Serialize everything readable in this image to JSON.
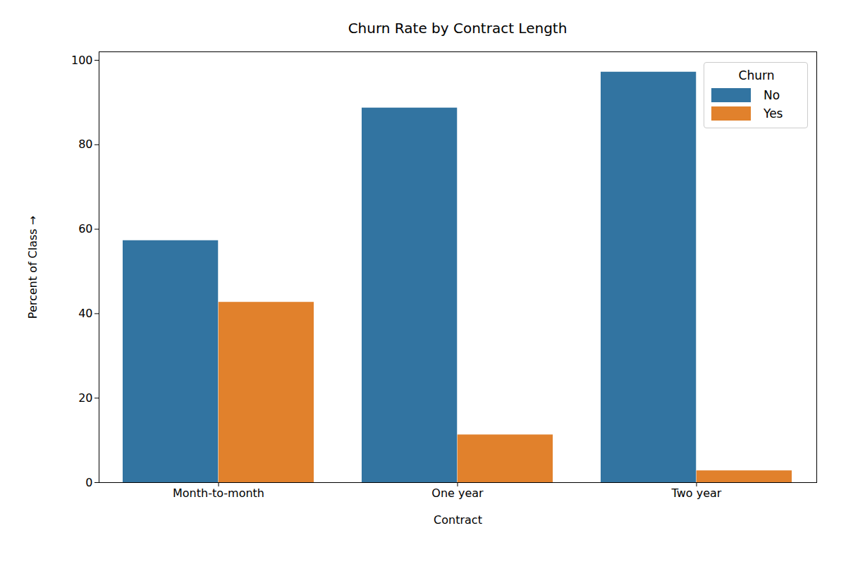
{
  "chart_data": {
    "type": "bar",
    "title": "Churn Rate by Contract Length",
    "x_label": "Contract",
    "y_label": "Percent of Class",
    "categories": [
      "Month-to-month",
      "One year",
      "Two year"
    ],
    "series": [
      {
        "name": "No",
        "color": "#3274a1",
        "values": [
          57.3,
          88.7,
          97.2
        ]
      },
      {
        "name": "Yes",
        "color": "#e1812c",
        "values": [
          42.7,
          11.3,
          2.8
        ]
      }
    ],
    "legend_title": "Churn",
    "legend": "upper right",
    "ylim": [
      0,
      102
    ],
    "yticks": [
      0,
      20,
      40,
      60,
      80,
      100
    ],
    "grid": false
  }
}
